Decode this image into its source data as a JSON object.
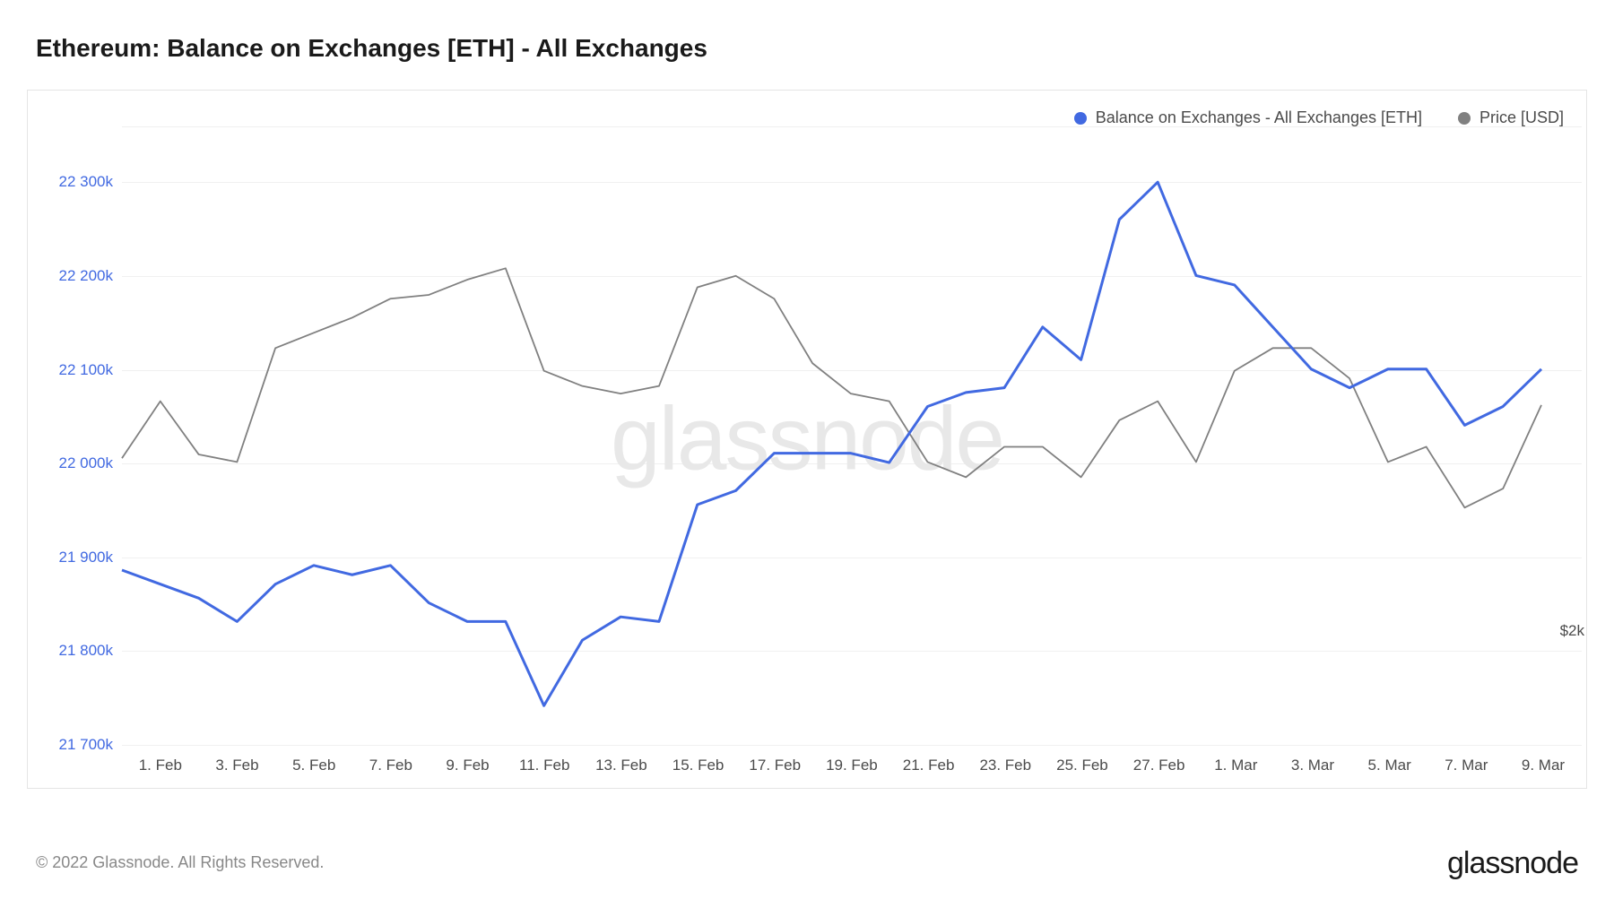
{
  "title": "Ethereum: Balance on Exchanges [ETH] - All Exchanges",
  "watermark": "glassnode",
  "footer": "© 2022 Glassnode. All Rights Reserved.",
  "brand": "glassnode",
  "legend": {
    "series1": {
      "label": "Balance on Exchanges - All Exchanges [ETH]",
      "color": "#4169E1"
    },
    "series2": {
      "label": "Price [USD]",
      "color": "#808080"
    }
  },
  "chart": {
    "type": "line",
    "background_color": "#ffffff",
    "grid_color": "#f0f0f0",
    "y_axis_left": {
      "min": 21700,
      "max": 22350,
      "ticks": [
        21700,
        21800,
        21900,
        22000,
        22100,
        22200,
        22300
      ],
      "tick_labels": [
        "21 700k",
        "21 800k",
        "21 900k",
        "22 000k",
        "22 100k",
        "22 200k",
        "22 300k"
      ],
      "color": "#4169E1",
      "fontsize": 17
    },
    "y_axis_right": {
      "min": 1700,
      "max": 3300,
      "ticks": [
        2000
      ],
      "tick_labels": [
        "$2k"
      ],
      "color": "#4a4a4a",
      "fontsize": 17
    },
    "x_axis": {
      "labels": [
        "1. Feb",
        "3. Feb",
        "5. Feb",
        "7. Feb",
        "9. Feb",
        "11. Feb",
        "13. Feb",
        "15. Feb",
        "17. Feb",
        "19. Feb",
        "21. Feb",
        "23. Feb",
        "25. Feb",
        "27. Feb",
        "1. Mar",
        "3. Mar",
        "5. Mar",
        "7. Mar",
        "9. Mar"
      ],
      "positions": [
        1,
        3,
        5,
        7,
        9,
        11,
        13,
        15,
        17,
        19,
        21,
        23,
        25,
        27,
        29,
        31,
        33,
        35,
        37
      ],
      "min": 0,
      "max": 37,
      "color": "#4a4a4a",
      "fontsize": 17
    },
    "series_balance": {
      "color": "#4169E1",
      "line_width": 3,
      "x": [
        0,
        1,
        2,
        3,
        4,
        5,
        6,
        7,
        8,
        9,
        10,
        11,
        12,
        13,
        14,
        15,
        16,
        17,
        18,
        19,
        20,
        21,
        22,
        23,
        24,
        25,
        26,
        27,
        28,
        29,
        30,
        31,
        32,
        33,
        34,
        35,
        36,
        37
      ],
      "y": [
        21885,
        21870,
        21855,
        21830,
        21870,
        21890,
        21880,
        21890,
        21850,
        21830,
        21830,
        21740,
        21810,
        21835,
        21830,
        21955,
        21970,
        22010,
        22010,
        22010,
        22000,
        22060,
        22075,
        22080,
        22145,
        22110,
        22260,
        22300,
        22200,
        22190,
        22145,
        22100,
        22080,
        22100,
        22100,
        22040,
        22060,
        22100
      ]
    },
    "series_price": {
      "color": "#808080",
      "line_width": 1.8,
      "x": [
        0,
        1,
        2,
        3,
        4,
        5,
        6,
        7,
        8,
        9,
        10,
        11,
        12,
        13,
        14,
        15,
        16,
        17,
        18,
        19,
        20,
        21,
        22,
        23,
        24,
        25,
        26,
        27,
        28,
        29,
        30,
        31,
        32,
        33,
        34,
        35,
        36,
        37
      ],
      "y": [
        2450,
        2600,
        2460,
        2440,
        2740,
        2780,
        2820,
        2870,
        2880,
        2920,
        2950,
        2680,
        2640,
        2620,
        2640,
        2900,
        2930,
        2870,
        2700,
        2620,
        2600,
        2440,
        2400,
        2480,
        2480,
        2400,
        2550,
        2600,
        2440,
        2680,
        2740,
        2740,
        2660,
        2440,
        2480,
        2320,
        2370,
        2590
      ]
    }
  }
}
